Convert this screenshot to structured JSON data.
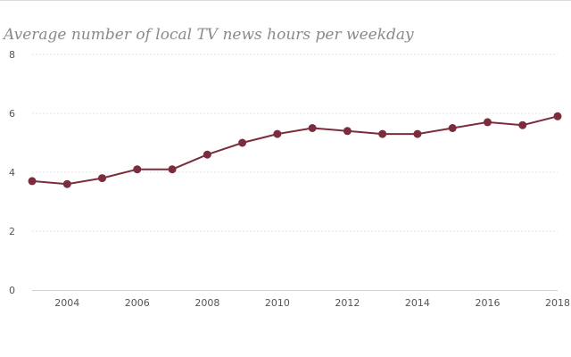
{
  "chart_data": {
    "type": "line",
    "title": "Average number of local TV news hours per weekday",
    "xlabel": "",
    "ylabel": "",
    "x": [
      2003,
      2004,
      2005,
      2006,
      2007,
      2008,
      2009,
      2010,
      2011,
      2012,
      2013,
      2014,
      2015,
      2016,
      2017,
      2018
    ],
    "series": [
      {
        "values": [
          3.7,
          3.6,
          3.8,
          4.1,
          4.1,
          4.6,
          5.0,
          5.3,
          5.5,
          5.4,
          5.3,
          5.3,
          5.5,
          5.7,
          5.6,
          5.9
        ],
        "color": "#7b2d3e"
      }
    ],
    "xlim": [
      2003,
      2018
    ],
    "ylim": [
      0,
      8
    ],
    "x_ticks": [
      "2004",
      "2006",
      "2008",
      "2010",
      "2012",
      "2014",
      "2016",
      "2018"
    ],
    "y_ticks": [
      "0",
      "2",
      "4",
      "6",
      "8"
    ],
    "grid": true,
    "legend": "none"
  }
}
